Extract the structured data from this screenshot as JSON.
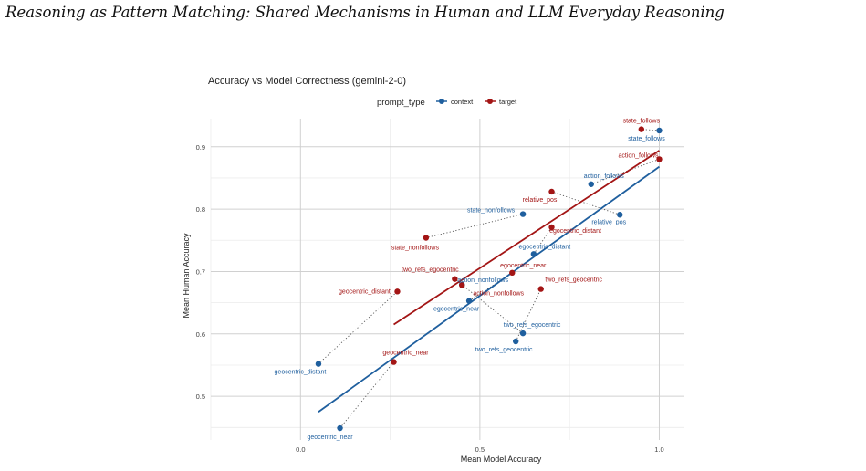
{
  "page": {
    "running_header": "Reasoning as Pattern Matching: Shared Mechanisms in Human and LLM Everyday Reasoning"
  },
  "chart_data": {
    "type": "scatter",
    "title": "Accuracy vs Model Correctness (gemini-2-0)",
    "xlabel": "Mean Model Accuracy",
    "ylabel": "Mean Human Accuracy",
    "legend_title": "prompt_type",
    "legend_placement": "top-center",
    "xlim": [
      -0.25,
      1.07
    ],
    "ylim": [
      0.43,
      0.945
    ],
    "xticks": [
      {
        "value": 0.0,
        "label": "0.0"
      },
      {
        "value": 0.5,
        "label": "0.5"
      },
      {
        "value": 1.0,
        "label": "1.0"
      }
    ],
    "yticks": [
      {
        "value": 0.5,
        "label": "0.5"
      },
      {
        "value": 0.6,
        "label": "0.6"
      },
      {
        "value": 0.7,
        "label": "0.7"
      },
      {
        "value": 0.8,
        "label": "0.8"
      },
      {
        "value": 0.9,
        "label": "0.9"
      }
    ],
    "grid": true,
    "series": [
      {
        "name": "context",
        "color": "#1f5f9e",
        "points": [
          {
            "label": "state_follows",
            "x": 1.0,
            "y": 0.926
          },
          {
            "label": "relative_pos",
            "x": 0.89,
            "y": 0.791
          },
          {
            "label": "action_follows",
            "x": 0.81,
            "y": 0.84
          },
          {
            "label": "state_nonfollows",
            "x": 0.62,
            "y": 0.792
          },
          {
            "label": "egocentric_distant",
            "x": 0.65,
            "y": 0.728
          },
          {
            "label": "action_nonfollows",
            "x": 0.45,
            "y": 0.679
          },
          {
            "label": "egocentric_near",
            "x": 0.47,
            "y": 0.653
          },
          {
            "label": "two_refs_egocentric",
            "x": 0.62,
            "y": 0.601
          },
          {
            "label": "two_refs_geocentric",
            "x": 0.6,
            "y": 0.588
          },
          {
            "label": "geocentric_distant",
            "x": 0.05,
            "y": 0.552
          },
          {
            "label": "geocentric_near",
            "x": 0.11,
            "y": 0.449
          }
        ],
        "fit": {
          "x": [
            0.05,
            1.0
          ],
          "y": [
            0.475,
            0.868
          ]
        }
      },
      {
        "name": "target",
        "color": "#a31515",
        "points": [
          {
            "label": "state_follows",
            "x": 0.95,
            "y": 0.928
          },
          {
            "label": "action_follows",
            "x": 1.0,
            "y": 0.88
          },
          {
            "label": "relative_pos",
            "x": 0.7,
            "y": 0.828
          },
          {
            "label": "egocentric_distant",
            "x": 0.7,
            "y": 0.771
          },
          {
            "label": "state_nonfollows",
            "x": 0.35,
            "y": 0.754
          },
          {
            "label": "egocentric_near",
            "x": 0.59,
            "y": 0.698
          },
          {
            "label": "two_refs_egocentric",
            "x": 0.43,
            "y": 0.688
          },
          {
            "label": "action_nonfollows",
            "x": 0.45,
            "y": 0.678
          },
          {
            "label": "geocentric_distant",
            "x": 0.27,
            "y": 0.668
          },
          {
            "label": "two_refs_geocentric",
            "x": 0.67,
            "y": 0.672
          },
          {
            "label": "geocentric_near",
            "x": 0.26,
            "y": 0.555
          }
        ],
        "fit": {
          "x": [
            0.26,
            1.0
          ],
          "y": [
            0.615,
            0.894
          ]
        }
      }
    ]
  }
}
